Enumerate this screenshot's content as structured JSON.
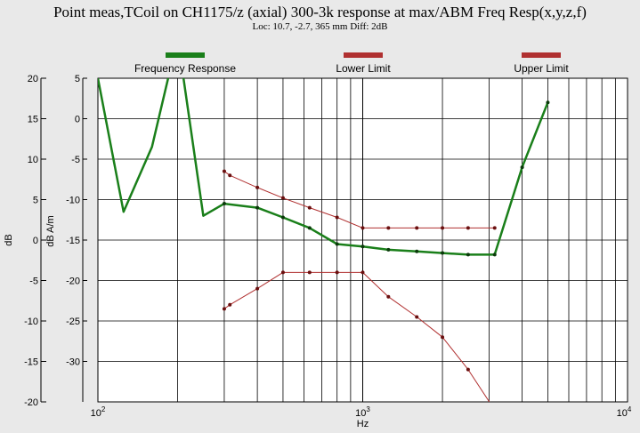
{
  "title": "Point meas,TCoil on CH1175/z (axial) 300-3k response at max/ABM Freq Resp(x,y,z,f)",
  "subtitle": "Loc: 10.7, -2.7, 365 mm Diff: 2dB",
  "colors": {
    "response": "#1a7f1a",
    "limits": "#b03030",
    "plot_bg": "#ffffff",
    "frame_bg": "#e9e9e9"
  },
  "chart_data": {
    "type": "line",
    "xlabel": "Hz",
    "ylabel_outer": "dB",
    "ylabel_inner": "dB A/m",
    "xscale": "log",
    "xlim": [
      100,
      10000
    ],
    "ylim_inner": [
      -35,
      5
    ],
    "ylim_outer": [
      -20,
      20
    ],
    "x_ticks": [
      {
        "value": 100,
        "base": "10",
        "exp": "2"
      },
      {
        "value": 1000,
        "base": "10",
        "exp": "3"
      },
      {
        "value": 10000,
        "base": "10",
        "exp": "4"
      }
    ],
    "y_ticks_inner": [
      5,
      0,
      -5,
      -10,
      -15,
      -20,
      -25,
      -30
    ],
    "y_ticks_outer": [
      20,
      15,
      10,
      5,
      0,
      -5,
      -10,
      -15,
      -20
    ],
    "grid": true,
    "legend_position": "top",
    "series": [
      {
        "name": "Frequency Response",
        "color": "#1a7f1a",
        "points": [
          [
            100,
            5
          ],
          [
            125,
            -11.5
          ],
          [
            160,
            -3.5
          ],
          [
            200,
            10
          ],
          [
            250,
            -12
          ],
          [
            300,
            -10.5
          ],
          [
            400,
            -11
          ],
          [
            500,
            -12.2
          ],
          [
            630,
            -13.5
          ],
          [
            800,
            -15.5
          ],
          [
            1000,
            -15.8
          ],
          [
            1250,
            -16.2
          ],
          [
            1600,
            -16.4
          ],
          [
            2000,
            -16.6
          ],
          [
            2500,
            -16.8
          ],
          [
            3150,
            -16.8
          ],
          [
            4000,
            -6
          ],
          [
            5000,
            2
          ]
        ]
      },
      {
        "name": "Lower Limit",
        "color": "#b03030",
        "points": [
          [
            300,
            -23.5
          ],
          [
            315,
            -23
          ],
          [
            400,
            -21
          ],
          [
            500,
            -19
          ],
          [
            630,
            -19
          ],
          [
            800,
            -19
          ],
          [
            1000,
            -19
          ],
          [
            1250,
            -22
          ],
          [
            1600,
            -24.5
          ],
          [
            2000,
            -27
          ],
          [
            2500,
            -31
          ],
          [
            3150,
            -36
          ]
        ]
      },
      {
        "name": "Upper Limit",
        "color": "#b03030",
        "points": [
          [
            300,
            -6.5
          ],
          [
            315,
            -7
          ],
          [
            400,
            -8.5
          ],
          [
            500,
            -9.8
          ],
          [
            630,
            -11
          ],
          [
            800,
            -12.2
          ],
          [
            1000,
            -13.5
          ],
          [
            1250,
            -13.5
          ],
          [
            1600,
            -13.5
          ],
          [
            2000,
            -13.5
          ],
          [
            2500,
            -13.5
          ],
          [
            3150,
            -13.5
          ]
        ]
      }
    ]
  }
}
